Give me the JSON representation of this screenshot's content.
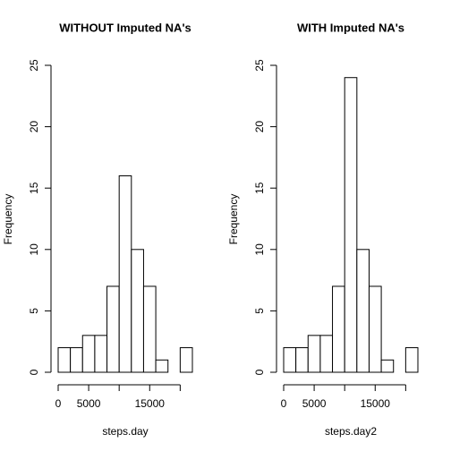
{
  "chart_data": [
    {
      "type": "histogram",
      "title": "WITHOUT Imputed NA's",
      "x_label": "steps.day",
      "y_label": "Frequency",
      "bins": [
        0,
        2000,
        4000,
        6000,
        8000,
        10000,
        12000,
        14000,
        16000,
        18000,
        20000,
        22000
      ],
      "values": [
        2,
        2,
        3,
        3,
        7,
        16,
        10,
        7,
        1,
        0,
        2
      ],
      "xlim": [
        0,
        22000
      ],
      "xticks": [
        0,
        5000,
        {
          "value": 10000,
          "label": null
        },
        15000,
        {
          "value": 20000,
          "label": null
        }
      ],
      "ylim": [
        0,
        25
      ],
      "yticks": [
        0,
        5,
        10,
        15,
        20,
        25
      ],
      "color": "#ffffff"
    },
    {
      "type": "histogram",
      "title": "WITH Imputed NA's",
      "x_label": "steps.day2",
      "y_label": "Frequency",
      "bins": [
        0,
        2000,
        4000,
        6000,
        8000,
        10000,
        12000,
        14000,
        16000,
        18000,
        20000,
        22000
      ],
      "values": [
        2,
        2,
        3,
        3,
        7,
        24,
        10,
        7,
        1,
        0,
        2
      ],
      "xlim": [
        0,
        22000
      ],
      "xticks": [
        0,
        5000,
        {
          "value": 10000,
          "label": null
        },
        15000,
        {
          "value": 20000,
          "label": null
        }
      ],
      "ylim": [
        0,
        25
      ],
      "yticks": [
        0,
        5,
        10,
        15,
        20,
        25
      ],
      "color": "#ffffff"
    }
  ]
}
